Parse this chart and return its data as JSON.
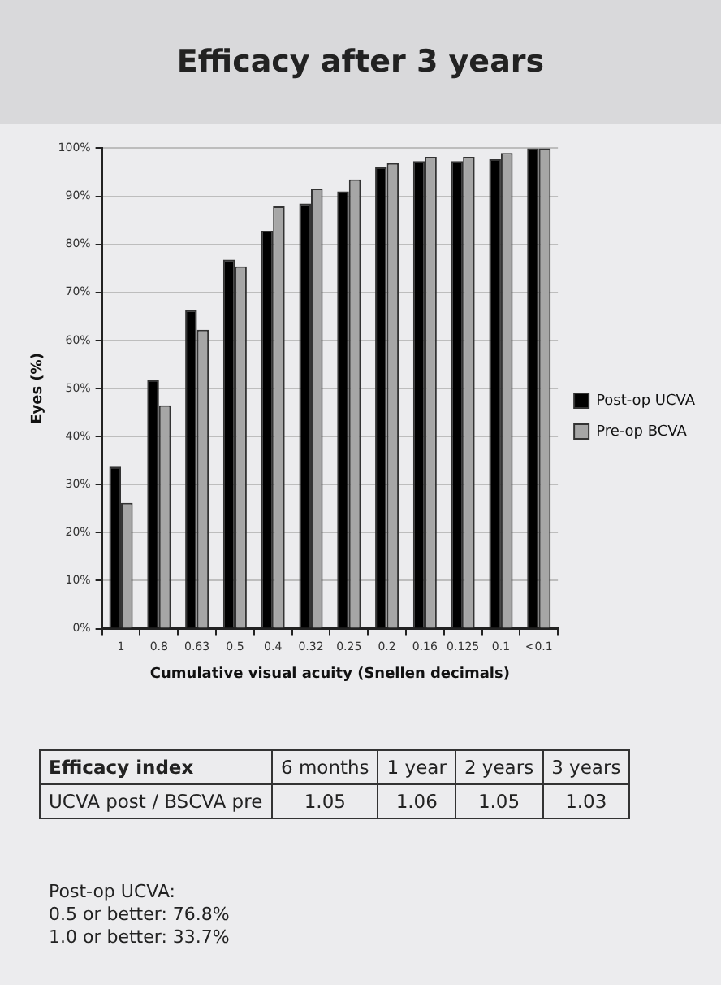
{
  "chart_data": {
    "type": "bar",
    "title": "Efficacy after 3 years",
    "xlabel": "Cumulative visual acuity (Snellen decimals)",
    "ylabel": "Eyes (%)",
    "categories": [
      "1",
      "0.8",
      "0.63",
      "0.5",
      "0.4",
      "0.32",
      "0.25",
      "0.2",
      "0.16",
      "0.125",
      "0.1",
      "<0.1"
    ],
    "series": [
      {
        "name": "Post-op UCVA",
        "color": "#000000",
        "values": [
          33.7,
          51.8,
          66.3,
          76.8,
          82.8,
          88.5,
          91,
          96,
          97.3,
          97.3,
          97.7,
          100
        ]
      },
      {
        "name": "Pre-op BCVA",
        "color": "#a6a6a6",
        "values": [
          26.2,
          46.5,
          62.2,
          75.4,
          87.9,
          91.6,
          93.5,
          96.9,
          98.2,
          98.2,
          99,
          100
        ]
      }
    ],
    "ylim": [
      0,
      100
    ],
    "yticks": [
      {
        "value": 0,
        "label": "0%"
      },
      {
        "value": 10,
        "label": "10%"
      },
      {
        "value": 20,
        "label": "20%"
      },
      {
        "value": 30,
        "label": "30%"
      },
      {
        "value": 40,
        "label": "40%"
      },
      {
        "value": 50,
        "label": "50%"
      },
      {
        "value": 60,
        "label": "60%"
      },
      {
        "value": 70,
        "label": "70%"
      },
      {
        "value": 80,
        "label": "80%"
      },
      {
        "value": 90,
        "label": "90%"
      },
      {
        "value": 100,
        "label": "100%"
      }
    ],
    "grid": "y",
    "legend": "right",
    "annotations": [
      "Efficacy index",
      "6 months",
      "1 year",
      "2 years",
      "3 years",
      "UCVA post / BSCVA pre",
      "1.05",
      "1.06",
      "1.05",
      "1.03",
      "Post-op UCVA:",
      "0.5 or better: 76.8%",
      "1.0 or better: 33.7%"
    ]
  }
}
